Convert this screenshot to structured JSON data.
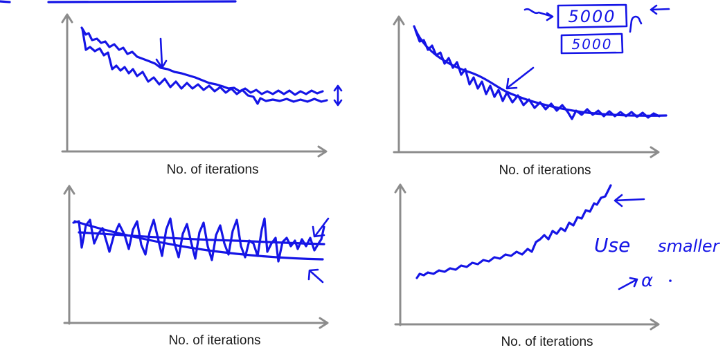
{
  "colors": {
    "ink": "#1515e6",
    "axis": "#8c8c8c",
    "text": "#1a1a1a"
  },
  "panels": [
    {
      "id": "top-left",
      "xlabel": "No. of iterations"
    },
    {
      "id": "top-right",
      "xlabel": "No. of iterations"
    },
    {
      "id": "bottom-left",
      "xlabel": "No. of iterations"
    },
    {
      "id": "bottom-right",
      "xlabel": "No. of iterations"
    }
  ],
  "annotations": {
    "box_top": "5000",
    "box_bottom": "5000",
    "use_smaller_line1": "Use",
    "use_smaller_line2": "smaller",
    "alpha": "α"
  }
}
